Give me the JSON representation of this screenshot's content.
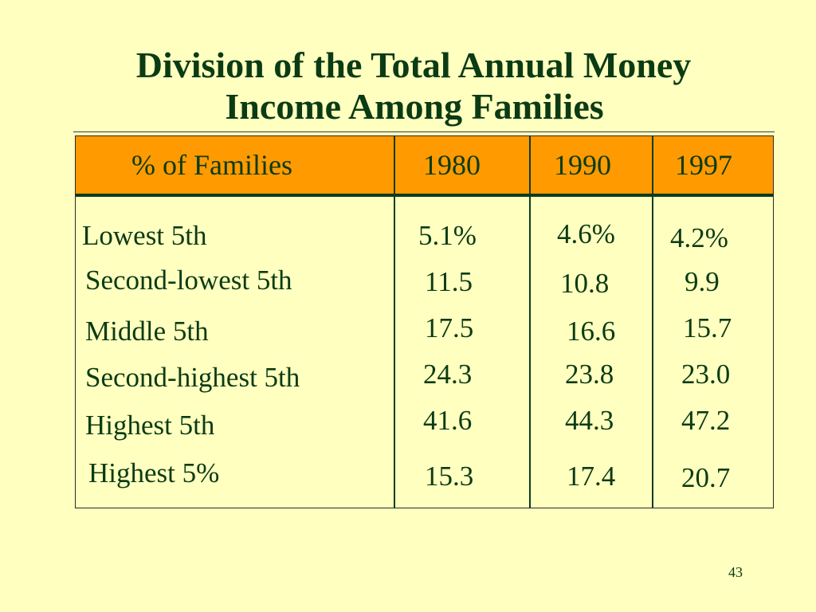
{
  "slide": {
    "title_line1": "Division of the Total Annual Money",
    "title_line2": "Income Among Families",
    "page_number": "43"
  },
  "table": {
    "headers": [
      "% of Families",
      "1980",
      "1990",
      "1997"
    ],
    "rows": [
      {
        "label": "Lowest 5th",
        "v1980": "5.1%",
        "v1990": "4.6%",
        "v1997": "4.2%"
      },
      {
        "label": "Second-lowest 5th",
        "v1980": "11.5",
        "v1990": "10.8",
        "v1997": "9.9"
      },
      {
        "label": "Middle 5th",
        "v1980": "17.5",
        "v1990": "16.6",
        "v1997": "15.7"
      },
      {
        "label": "Second-highest 5th",
        "v1980": "24.3",
        "v1990": "23.8",
        "v1997": "23.0"
      },
      {
        "label": "Highest 5th",
        "v1980": "41.6",
        "v1990": "44.3",
        "v1997": "47.2"
      },
      {
        "label": "Highest 5%",
        "v1980": "15.3",
        "v1990": "17.4",
        "v1997": "20.7"
      }
    ]
  },
  "colors": {
    "background": "#FFFFC0",
    "header_fill": "#FF9A00",
    "text": "#0B3B14"
  }
}
